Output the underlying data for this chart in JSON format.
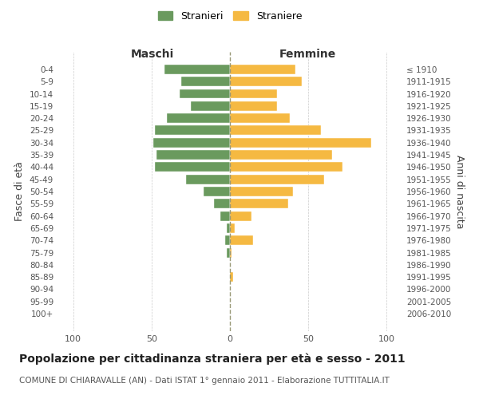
{
  "age_groups": [
    "0-4",
    "5-9",
    "10-14",
    "15-19",
    "20-24",
    "25-29",
    "30-34",
    "35-39",
    "40-44",
    "45-49",
    "50-54",
    "55-59",
    "60-64",
    "65-69",
    "70-74",
    "75-79",
    "80-84",
    "85-89",
    "90-94",
    "95-99",
    "100+"
  ],
  "birth_years": [
    "2006-2010",
    "2001-2005",
    "1996-2000",
    "1991-1995",
    "1986-1990",
    "1981-1985",
    "1976-1980",
    "1971-1975",
    "1966-1970",
    "1961-1965",
    "1956-1960",
    "1951-1955",
    "1946-1950",
    "1941-1945",
    "1936-1940",
    "1931-1935",
    "1926-1930",
    "1921-1925",
    "1916-1920",
    "1911-1915",
    "≤ 1910"
  ],
  "maschi": [
    42,
    31,
    32,
    25,
    40,
    48,
    49,
    47,
    48,
    28,
    17,
    10,
    6,
    2,
    3,
    2,
    0,
    0,
    0,
    0,
    0
  ],
  "femmine": [
    42,
    46,
    30,
    30,
    38,
    58,
    90,
    65,
    72,
    60,
    40,
    37,
    14,
    3,
    15,
    1,
    0,
    2,
    0,
    0,
    0
  ],
  "maschi_color": "#6a9a5e",
  "femmine_color": "#f5b942",
  "background_color": "#ffffff",
  "grid_color": "#cccccc",
  "title": "Popolazione per cittadinanza straniera per età e sesso - 2011",
  "subtitle": "COMUNE DI CHIARAVALLE (AN) - Dati ISTAT 1° gennaio 2011 - Elaborazione TUTTITALIA.IT",
  "ylabel_left": "Fasce di età",
  "ylabel_right": "Anni di nascita",
  "xlabel_left": "Maschi",
  "xlabel_right": "Femmine",
  "legend_maschi": "Stranieri",
  "legend_femmine": "Straniere",
  "xlim": 110,
  "title_fontsize": 10,
  "subtitle_fontsize": 7.5,
  "axis_label_fontsize": 9
}
